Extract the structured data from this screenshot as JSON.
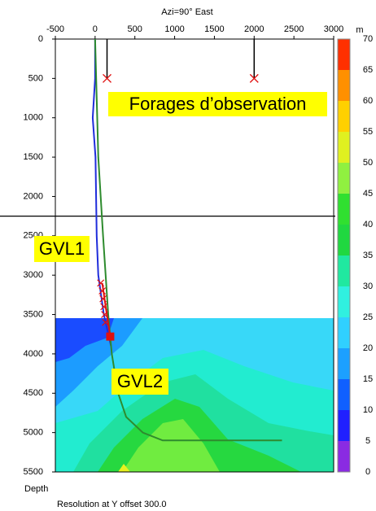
{
  "chart_data": {
    "type": "line",
    "title": "Azi=90° East",
    "ylabel": "Depth",
    "footer": "Resolution at Y offset   300.0",
    "xlim": [
      -500,
      3000
    ],
    "xticks": [
      -500,
      0,
      500,
      1000,
      1500,
      2000,
      2500,
      3000
    ],
    "ylim": [
      0,
      5500
    ],
    "yticks": [
      0,
      500,
      1000,
      1500,
      2000,
      2500,
      3000,
      3500,
      4000,
      4500,
      5000,
      5500
    ],
    "y_inverted": true,
    "reference_depth": 2250,
    "series": [
      {
        "name": "GVL1",
        "color": "#1f2ddb",
        "x": [
          0,
          0,
          -30,
          5,
          20,
          40,
          110,
          200
        ],
        "y": [
          0,
          500,
          1000,
          1500,
          2500,
          3000,
          3500,
          3900
        ]
      },
      {
        "name": "GVL2",
        "color": "#2e8b2e",
        "x": [
          0,
          40,
          100,
          165,
          210,
          290,
          390,
          600,
          850,
          2350
        ],
        "y": [
          0,
          1500,
          2500,
          3500,
          4000,
          4500,
          4800,
          5000,
          5100,
          5100
        ]
      },
      {
        "color": "#e01010",
        "x": [
          90,
          140,
          190
        ],
        "y": [
          3100,
          3450,
          3780
        ]
      }
    ],
    "markers": {
      "color": "#e01010",
      "x": [
        70,
        90,
        100,
        110,
        120,
        130
      ],
      "y": [
        3100,
        3200,
        3300,
        3400,
        3500,
        3600
      ]
    },
    "observation_wells": {
      "color": "#e01010",
      "x": [
        150,
        2000
      ],
      "y": [
        500,
        500
      ]
    },
    "annotations": [
      "Forages d’observation",
      "GVL1",
      "GVL2"
    ],
    "colorbar": {
      "label": "m",
      "ticks": [
        0,
        5,
        10,
        15,
        20,
        25,
        30,
        35,
        40,
        45,
        50,
        55,
        60,
        65,
        70
      ],
      "colors": [
        "#8a2be2",
        "#2020ff",
        "#1060ff",
        "#1ca0ff",
        "#30d0ff",
        "#30f0e0",
        "#20e8a0",
        "#20d840",
        "#30e030",
        "#90f040",
        "#e0f020",
        "#ffd000",
        "#ff9000",
        "#ff3000"
      ]
    }
  }
}
